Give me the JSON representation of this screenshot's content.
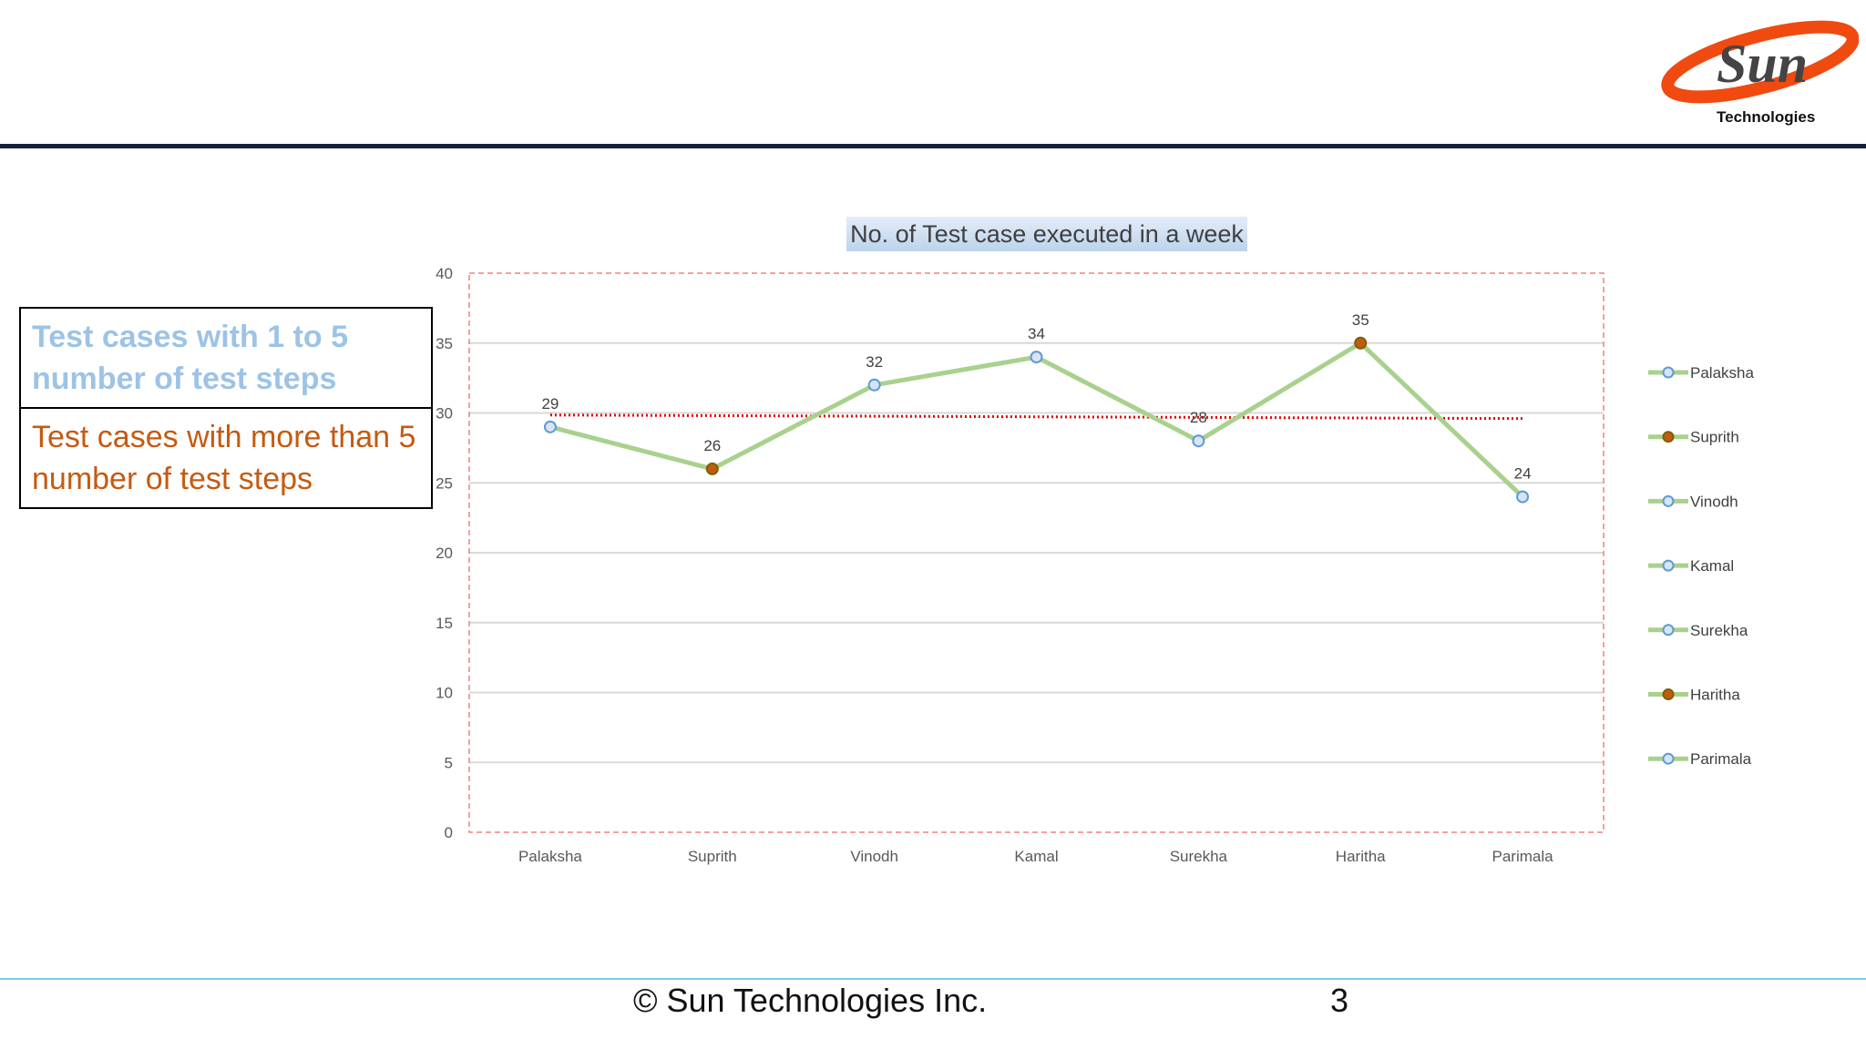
{
  "logo": {
    "text": "Technologies",
    "brand": "Sun"
  },
  "left_legend": {
    "item1": "Test cases with 1 to 5 number of test steps",
    "item1_color": "#9dc3e6",
    "item2": "Test cases with more than 5 number of test steps",
    "item2_color": "#c55a11"
  },
  "chart_data": {
    "type": "line",
    "title": "No. of Test case executed in a week",
    "categories": [
      "Palaksha",
      "Suprith",
      "Vinodh",
      "Kamal",
      "Surekha",
      "Haritha",
      "Parimala"
    ],
    "values": [
      29,
      26,
      32,
      34,
      28,
      35,
      24
    ],
    "marker_groups": [
      "1-5",
      "more",
      "1-5",
      "1-5",
      "1-5",
      "more",
      "1-5"
    ],
    "data_labels": [
      "29",
      "26",
      "32",
      "34",
      "28",
      "35",
      "24"
    ],
    "ylim": [
      0,
      40
    ],
    "yticks": [
      "0",
      "5",
      "10",
      "15",
      "20",
      "25",
      "30",
      "35",
      "40"
    ],
    "grid": true,
    "legend": "right",
    "trendline": {
      "start": 29.85,
      "end": 29.6,
      "color": "#e00000",
      "style": "dotted"
    },
    "colors": {
      "line": "#a9d18e",
      "marker_light": "#dae3f3",
      "marker_light_stroke": "#5b9bd5",
      "marker_dark": "#c55a11",
      "plot_border": "#f08080"
    }
  },
  "footer": {
    "copyright": "© Sun Technologies Inc.",
    "page": "3"
  }
}
